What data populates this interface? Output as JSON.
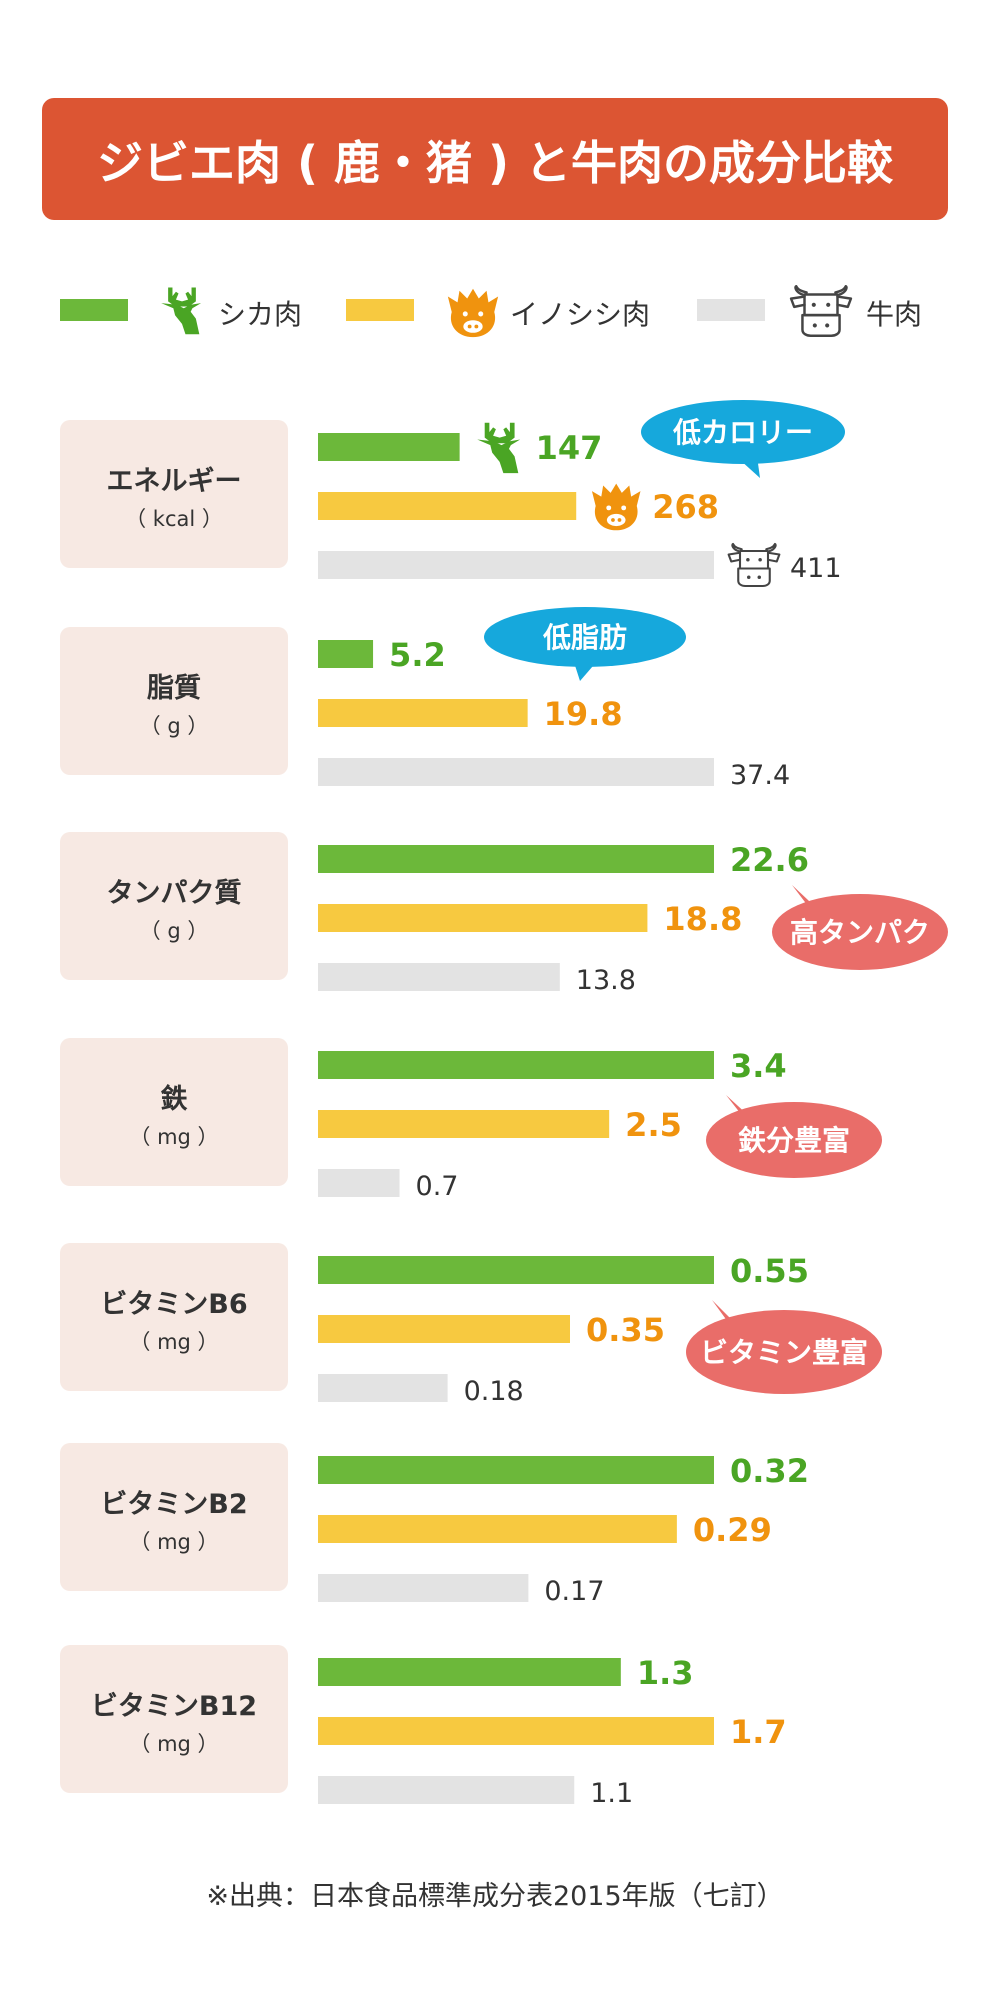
{
  "title": "ジビエ肉 ( 鹿・猪 ) と牛肉の成分比較",
  "legend": [
    {
      "name": "シカ肉",
      "color": "#6cb83a",
      "icon": "deer-icon"
    },
    {
      "name": "イノシシ肉",
      "color": "#f7c940",
      "icon": "boar-icon"
    },
    {
      "name": "牛肉",
      "color": "#e3e3e3",
      "icon": "cow-icon"
    }
  ],
  "colors": {
    "title_bg": "#dc5533",
    "label_bg": "#f7e9e3",
    "deer_text": "#4aa524",
    "boar_text": "#f0930e",
    "beef_text": "#333333",
    "bubble_blue": "#16a8dc",
    "bubble_red": "#e96d69"
  },
  "chart_data": {
    "type": "bar",
    "orientation": "horizontal",
    "categories": [
      {
        "name": "エネルギー",
        "unit": "（ kcal ）"
      },
      {
        "name": "脂質",
        "unit": "（ g ）"
      },
      {
        "name": "タンパク質",
        "unit": "（ g ）"
      },
      {
        "name": "鉄",
        "unit": "（ mg ）"
      },
      {
        "name": "ビタミンB6",
        "unit": "（ mg ）"
      },
      {
        "name": "ビタミンB2",
        "unit": "（ mg ）"
      },
      {
        "name": "ビタミンB12",
        "unit": "（ mg ）"
      }
    ],
    "series": [
      {
        "name": "シカ肉",
        "values": [
          147,
          5.2,
          22.6,
          3.4,
          0.55,
          0.32,
          1.3
        ],
        "labels": [
          "147",
          "5.2",
          "22.6",
          "3.4",
          "0.55",
          "0.32",
          "1.3"
        ]
      },
      {
        "name": "イノシシ肉",
        "values": [
          268,
          19.8,
          18.8,
          2.5,
          0.35,
          0.29,
          1.7
        ],
        "labels": [
          "268",
          "19.8",
          "18.8",
          "2.5",
          "0.35",
          "0.29",
          "1.7"
        ]
      },
      {
        "name": "牛肉",
        "values": [
          411,
          37.4,
          13.8,
          0.7,
          0.18,
          0.17,
          1.1
        ],
        "labels": [
          "411",
          "37.4",
          "13.8",
          "0.7",
          "0.18",
          "0.17",
          "1.1"
        ]
      }
    ],
    "scale": "each category scaled to its own maximum",
    "annotations": [
      {
        "text": "低カロリー",
        "category": 0,
        "color": "blue"
      },
      {
        "text": "低脂肪",
        "category": 1,
        "color": "blue"
      },
      {
        "text": "高タンパク",
        "category": 2,
        "color": "red"
      },
      {
        "text": "鉄分豊富",
        "category": 3,
        "color": "red"
      },
      {
        "text": "ビタミン豊富",
        "category": 4,
        "color": "red"
      }
    ]
  },
  "source": "※出典：日本食品標準成分表2015年版（七訂）"
}
